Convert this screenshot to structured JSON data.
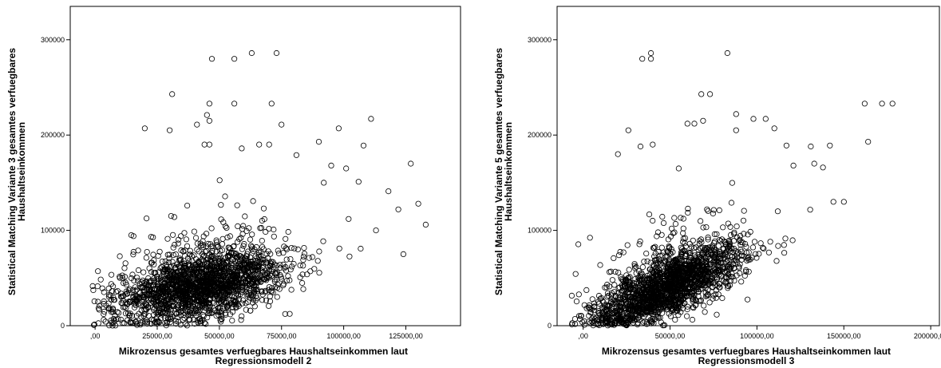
{
  "chart_data": [
    {
      "type": "scatter",
      "xlabel_lines": [
        "Mikrozensus gesamtes verfuegbares Haushaltseinkommen laut",
        "Regressionsmodell 2"
      ],
      "ylabel_lines": [
        "Statistical Matching Variante 3 gesamtes verfuegbares",
        "Haushaltseinkommen"
      ],
      "xlim": [
        -10000,
        147000
      ],
      "ylim": [
        0,
        335000
      ],
      "xticks": [
        0,
        25000,
        50000,
        75000,
        100000,
        125000
      ],
      "xtick_labels": [
        ",00",
        "25000,00",
        "50000,00",
        "75000,00",
        "100000,00",
        "125000,00"
      ],
      "yticks": [
        0,
        100000,
        200000,
        300000
      ],
      "ytick_labels": [
        "0",
        "100000",
        "200000",
        "300000"
      ],
      "grid": false,
      "cloud": {
        "center": [
          43000,
          42000
        ],
        "spread": [
          17000,
          17000
        ],
        "slope": 0.55,
        "n": 1900
      },
      "outliers": [
        [
          47000,
          280000
        ],
        [
          56000,
          280000
        ],
        [
          63000,
          286000
        ],
        [
          73000,
          286000
        ],
        [
          31000,
          243000
        ],
        [
          46000,
          233000
        ],
        [
          56000,
          233000
        ],
        [
          71000,
          233000
        ],
        [
          20000,
          207000
        ],
        [
          30000,
          205000
        ],
        [
          41000,
          211000
        ],
        [
          45000,
          221000
        ],
        [
          46000,
          215000
        ],
        [
          75000,
          211000
        ],
        [
          98000,
          207000
        ],
        [
          111000,
          217000
        ],
        [
          44000,
          190000
        ],
        [
          46000,
          190000
        ],
        [
          59000,
          186000
        ],
        [
          66000,
          190000
        ],
        [
          70000,
          190000
        ],
        [
          81000,
          179000
        ],
        [
          90000,
          193000
        ],
        [
          108000,
          189000
        ],
        [
          127000,
          170000
        ],
        [
          95000,
          168000
        ],
        [
          101000,
          165000
        ],
        [
          106000,
          151000
        ],
        [
          118000,
          141000
        ],
        [
          122000,
          122000
        ],
        [
          130000,
          128000
        ],
        [
          133000,
          106000
        ],
        [
          124000,
          75000
        ],
        [
          113000,
          100000
        ],
        [
          102000,
          112000
        ],
        [
          92000,
          150000
        ]
      ]
    },
    {
      "type": "scatter",
      "xlabel_lines": [
        "Mikrozensus gesamtes verfuegbares Haushaltseinkommen laut",
        "Regressionsmodell 3"
      ],
      "ylabel_lines": [
        "Statistical Matching Variante 5 gesamtes verfuegbares",
        "Haushaltseinkommen"
      ],
      "xlim": [
        -15000,
        205000
      ],
      "ylim": [
        0,
        335000
      ],
      "xticks": [
        0,
        50000,
        100000,
        150000,
        200000
      ],
      "xtick_labels": [
        ",00",
        "50000,00",
        "100000,00",
        "150000,00",
        "200000,00"
      ],
      "yticks": [
        0,
        100000,
        200000,
        300000
      ],
      "ytick_labels": [
        "0",
        "100000",
        "200000",
        "300000"
      ],
      "grid": false,
      "cloud": {
        "center": [
          48000,
          40000
        ],
        "spread": [
          22000,
          16000
        ],
        "slope": 0.75,
        "n": 1900
      },
      "outliers": [
        [
          34000,
          280000
        ],
        [
          39000,
          280000
        ],
        [
          39000,
          286000
        ],
        [
          83000,
          286000
        ],
        [
          68000,
          243000
        ],
        [
          73000,
          243000
        ],
        [
          162000,
          233000
        ],
        [
          172000,
          233000
        ],
        [
          178000,
          233000
        ],
        [
          26000,
          205000
        ],
        [
          33000,
          188000
        ],
        [
          40000,
          190000
        ],
        [
          60000,
          212000
        ],
        [
          64000,
          212000
        ],
        [
          69000,
          215000
        ],
        [
          88000,
          222000
        ],
        [
          88000,
          205000
        ],
        [
          98000,
          217000
        ],
        [
          105000,
          217000
        ],
        [
          110000,
          207000
        ],
        [
          117000,
          189000
        ],
        [
          131000,
          188000
        ],
        [
          142000,
          189000
        ],
        [
          164000,
          193000
        ],
        [
          121000,
          168000
        ],
        [
          133000,
          170000
        ],
        [
          138000,
          166000
        ],
        [
          150000,
          130000
        ],
        [
          144000,
          130000
        ],
        [
          112000,
          120000
        ],
        [
          20000,
          180000
        ],
        [
          55000,
          165000
        ]
      ]
    }
  ]
}
